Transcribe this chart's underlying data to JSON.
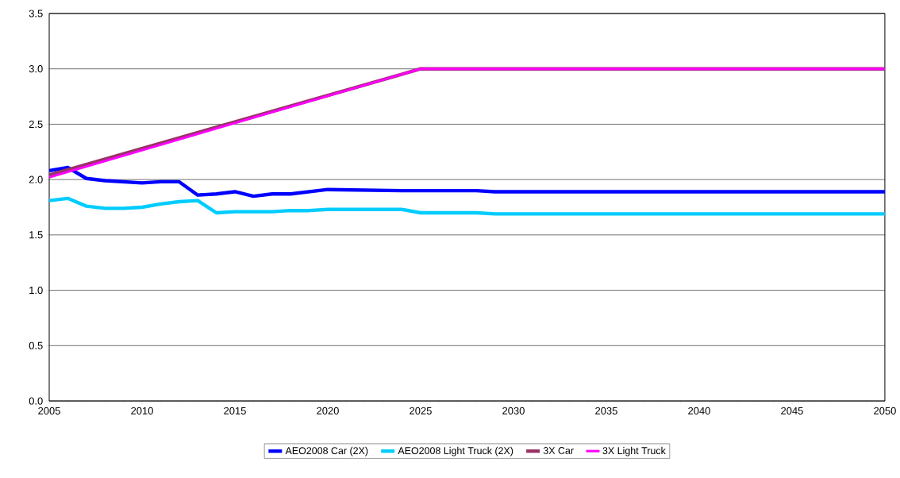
{
  "chart_data": {
    "type": "line",
    "xlim": [
      2005,
      2050
    ],
    "xticks": [
      2005,
      2010,
      2015,
      2020,
      2025,
      2030,
      2035,
      2040,
      2045,
      2050
    ],
    "ylim": [
      0,
      3.5
    ],
    "yticks": [
      {
        "value": 0,
        "label": "0.0"
      },
      {
        "value": 0.5,
        "label": "0.5"
      },
      {
        "value": 1,
        "label": "1.0"
      },
      {
        "value": 1.5,
        "label": "1.5"
      },
      {
        "value": 2,
        "label": "2.0"
      },
      {
        "value": 2.5,
        "label": "2.5"
      },
      {
        "value": 3,
        "label": "3.0"
      },
      {
        "value": 3.5,
        "label": "3.5"
      }
    ],
    "grid": "y",
    "legend": "bottom",
    "marker": "none",
    "line_style": "solid",
    "series": [
      {
        "name": "AEO2008 Car (2X)",
        "color": "#0000ff",
        "x": [
          2005,
          2006,
          2007,
          2008,
          2009,
          2010,
          2011,
          2012,
          2013,
          2014,
          2015,
          2016,
          2017,
          2018,
          2019,
          2020,
          2024,
          2028,
          2029,
          2050
        ],
        "values": [
          2.08,
          2.11,
          2.01,
          1.99,
          1.98,
          1.97,
          1.98,
          1.98,
          1.86,
          1.87,
          1.89,
          1.85,
          1.87,
          1.87,
          1.89,
          1.91,
          1.9,
          1.9,
          1.89,
          1.89
        ]
      },
      {
        "name": "AEO2008 Light Truck (2X)",
        "color": "#00ccff",
        "x": [
          2005,
          2006,
          2007,
          2008,
          2009,
          2010,
          2011,
          2012,
          2013,
          2014,
          2015,
          2016,
          2017,
          2018,
          2019,
          2020,
          2024,
          2025,
          2028,
          2029,
          2050
        ],
        "values": [
          1.81,
          1.83,
          1.76,
          1.74,
          1.74,
          1.75,
          1.78,
          1.8,
          1.81,
          1.7,
          1.71,
          1.71,
          1.71,
          1.72,
          1.72,
          1.73,
          1.73,
          1.7,
          1.7,
          1.69,
          1.69
        ]
      },
      {
        "name": "3X Car",
        "color": "#993366",
        "x": [
          2005,
          2025,
          2050
        ],
        "values": [
          2.04,
          3.0,
          3.0
        ]
      },
      {
        "name": "3X Light Truck",
        "color": "#ff00ff",
        "x": [
          2005,
          2025,
          2050
        ],
        "values": [
          2.02,
          3.0,
          3.0
        ]
      }
    ]
  }
}
